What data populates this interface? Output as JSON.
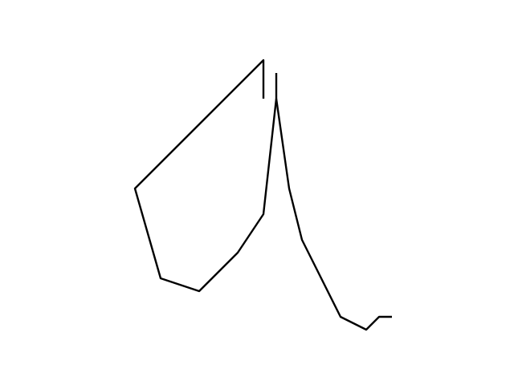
{
  "drawing": {
    "background_color": "#ffffff",
    "stroke_color": "#000000",
    "stroke_count": 2
  }
}
